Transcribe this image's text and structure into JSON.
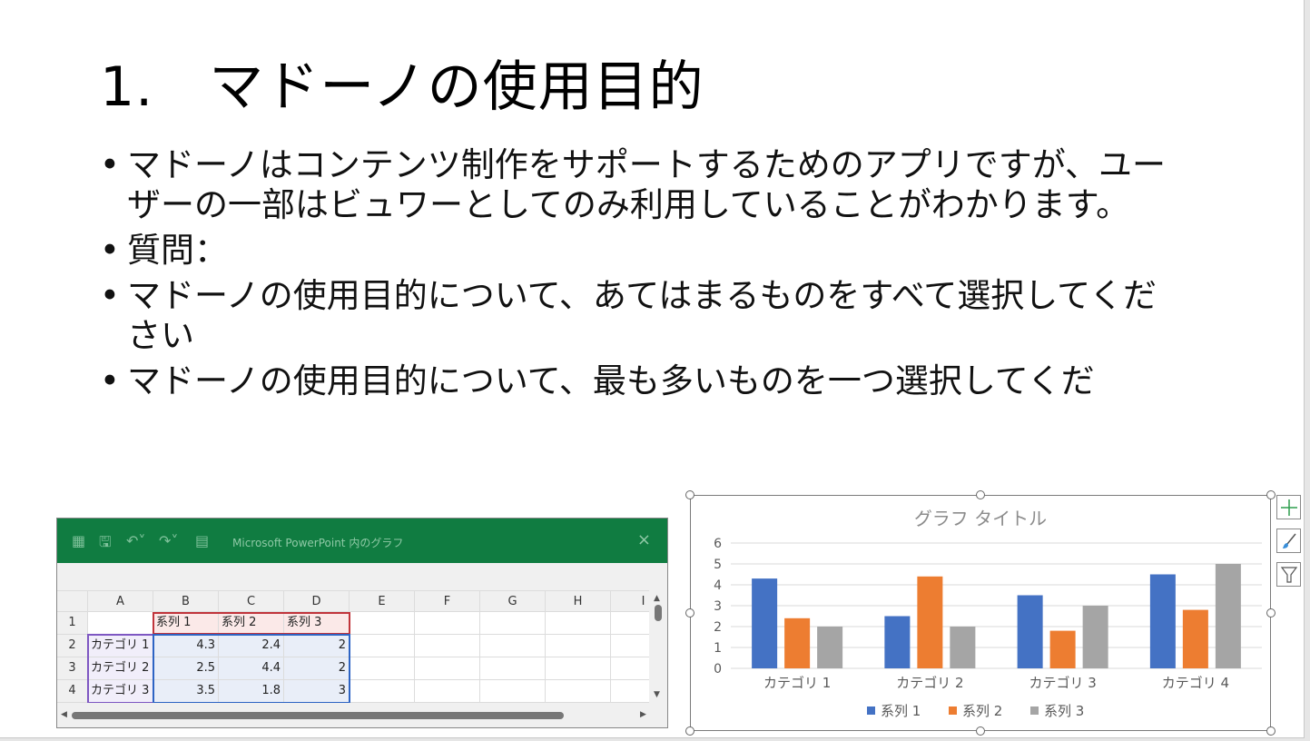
{
  "slide": {
    "title": "1.　マドーノの使用目的",
    "bullets": [
      "マドーノはコンテンツ制作をサポートするためのアプリですが、ユーザーの一部はビュワーとしてのみ利用していることがわかります。",
      "質問：",
      "マドーノの使用目的について、あてはまるものをすべて選択してください",
      "マドーノの使用目的について、最も多いものを一つ選択してくだ"
    ]
  },
  "chart_side_buttons": [
    "chart-elements-icon",
    "chart-styles-icon",
    "chart-filters-icon"
  ],
  "chart_data": {
    "type": "bar",
    "title": "グラフ タイトル",
    "categories": [
      "カテゴリ 1",
      "カテゴリ 2",
      "カテゴリ 3",
      "カテゴリ 4"
    ],
    "series": [
      {
        "name": "系列 1",
        "values": [
          4.3,
          2.5,
          3.5,
          4.5
        ],
        "color": "#4472c4"
      },
      {
        "name": "系列 2",
        "values": [
          2.4,
          4.4,
          1.8,
          2.8
        ],
        "color": "#ed7d31"
      },
      {
        "name": "系列 3",
        "values": [
          2,
          2,
          3,
          5
        ],
        "color": "#a5a5a5"
      }
    ],
    "ylim": [
      0,
      6
    ],
    "yticks": [
      "0",
      "1",
      "2",
      "3",
      "4",
      "5",
      "6"
    ],
    "grid": true,
    "legend": "bottom"
  },
  "excel": {
    "title": "Microsoft PowerPoint 内のグラフ",
    "close": "×",
    "columns": [
      "A",
      "B",
      "C",
      "D",
      "E",
      "F",
      "G",
      "H",
      "I"
    ],
    "rows": [
      {
        "num": "1",
        "cells": [
          "",
          "系列 1",
          "系列 2",
          "系列 3"
        ]
      },
      {
        "num": "2",
        "cells": [
          "カテゴリ 1",
          "4.3",
          "2.4",
          "2"
        ]
      },
      {
        "num": "3",
        "cells": [
          "カテゴリ 2",
          "2.5",
          "4.4",
          "2"
        ]
      },
      {
        "num": "4",
        "cells": [
          "カテゴリ 3",
          "3.5",
          "1.8",
          "3"
        ]
      }
    ]
  }
}
